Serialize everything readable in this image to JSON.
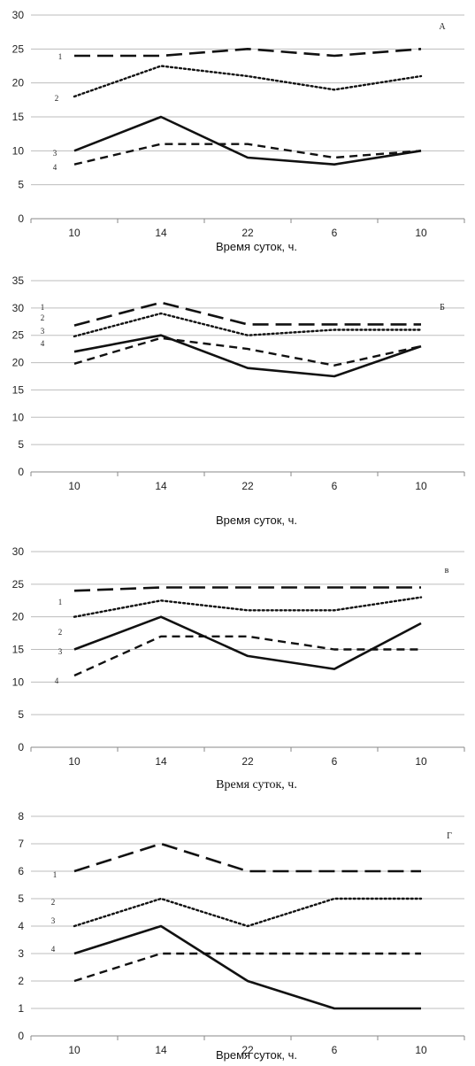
{
  "chart_data": [
    {
      "type": "line",
      "panel_label": "А",
      "categories": [
        "10",
        "14",
        "22",
        "6",
        "10"
      ],
      "ylim": [
        0,
        30
      ],
      "yticks": [
        0,
        5,
        10,
        15,
        20,
        25,
        30
      ],
      "xlabel": "Время суток, ч.",
      "grid": true,
      "series": [
        {
          "name": "1",
          "values": [
            24,
            24,
            25,
            24,
            25
          ],
          "style": "longdash"
        },
        {
          "name": "2",
          "values": [
            18,
            22.5,
            21,
            19,
            21
          ],
          "style": "dotted"
        },
        {
          "name": "3",
          "values": [
            10,
            15,
            9,
            8,
            10
          ],
          "style": "solid"
        },
        {
          "name": "4",
          "values": [
            8,
            11,
            11,
            9,
            10
          ],
          "style": "dashed"
        }
      ]
    },
    {
      "type": "line",
      "panel_label": "Б",
      "categories": [
        "10",
        "14",
        "22",
        "6",
        "10"
      ],
      "ylim": [
        0,
        35
      ],
      "yticks": [
        0,
        5,
        10,
        15,
        20,
        25,
        30,
        35
      ],
      "xlabel": "Время суток, ч.",
      "grid": true,
      "series": [
        {
          "name": "1",
          "values": [
            26.8,
            31,
            27,
            27,
            27
          ],
          "style": "longdash"
        },
        {
          "name": "2",
          "values": [
            24.8,
            29,
            25,
            26,
            26
          ],
          "style": "dotted"
        },
        {
          "name": "3",
          "values": [
            22,
            25,
            19,
            17.5,
            23
          ],
          "style": "solid"
        },
        {
          "name": "4",
          "values": [
            19.8,
            24.5,
            22.5,
            19.5,
            23
          ],
          "style": "dashed"
        }
      ]
    },
    {
      "type": "line",
      "panel_label": "в",
      "categories": [
        "10",
        "14",
        "22",
        "6",
        "10"
      ],
      "ylim": [
        0,
        30
      ],
      "yticks": [
        0,
        5,
        10,
        15,
        20,
        25,
        30
      ],
      "xlabel": "Время суток, ч.",
      "grid": true,
      "series": [
        {
          "name": "1",
          "values": [
            24,
            24.5,
            24.5,
            24.5,
            24.5
          ],
          "style": "longdash"
        },
        {
          "name": "2",
          "values": [
            20,
            22.5,
            21,
            21,
            23
          ],
          "style": "dotted"
        },
        {
          "name": "3",
          "values": [
            15,
            20,
            14,
            12,
            19
          ],
          "style": "solid"
        },
        {
          "name": "4",
          "values": [
            11,
            17,
            17,
            15,
            15
          ],
          "style": "dashed"
        }
      ]
    },
    {
      "type": "line",
      "panel_label": "Г",
      "categories": [
        "10",
        "14",
        "22",
        "6",
        "10"
      ],
      "ylim": [
        0,
        8
      ],
      "yticks": [
        0,
        1,
        2,
        3,
        4,
        5,
        6,
        7,
        8
      ],
      "xlabel": "Время суток, ч.",
      "grid": true,
      "series": [
        {
          "name": "1",
          "values": [
            6,
            7,
            6,
            6,
            6
          ],
          "style": "longdash"
        },
        {
          "name": "2",
          "values": [
            4,
            5,
            4,
            5,
            5
          ],
          "style": "dotted"
        },
        {
          "name": "3",
          "values": [
            3,
            4,
            2,
            1,
            1
          ],
          "style": "solid"
        },
        {
          "name": "4",
          "values": [
            2,
            3,
            3,
            3,
            3
          ],
          "style": "dashed"
        }
      ]
    }
  ]
}
